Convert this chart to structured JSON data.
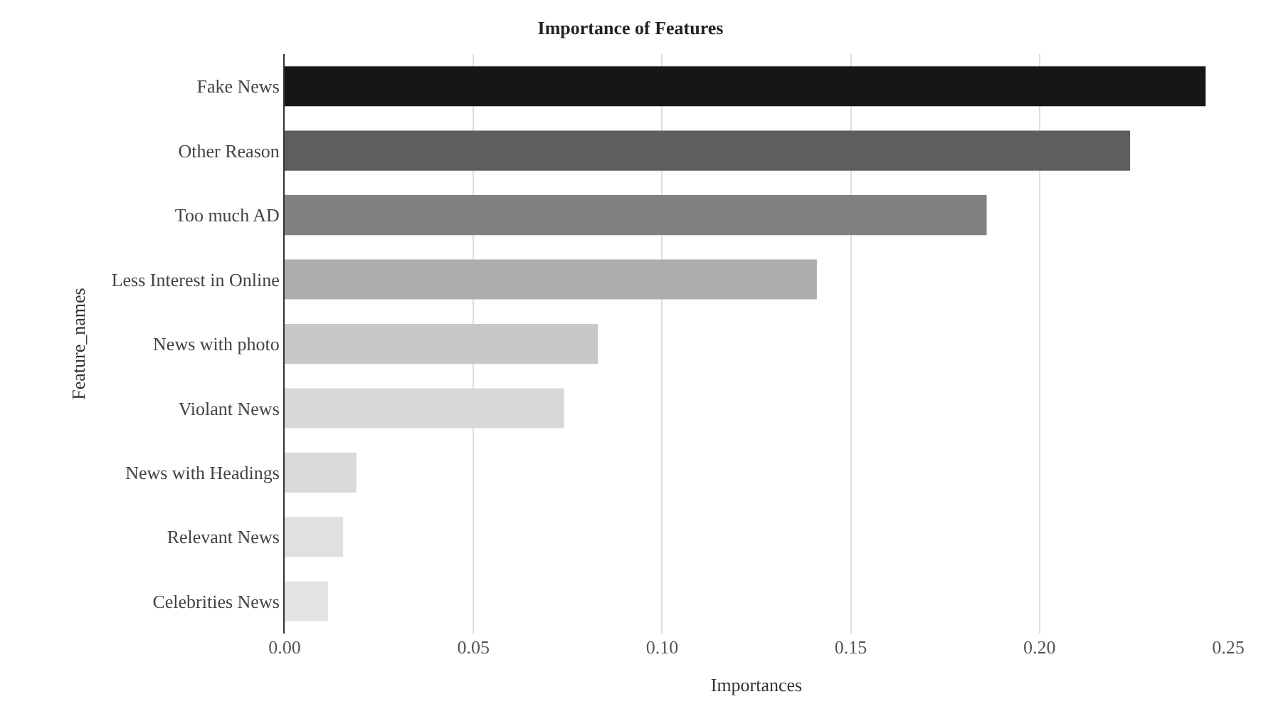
{
  "chart_data": {
    "type": "bar",
    "orientation": "horizontal",
    "title": "Importance of Features",
    "xlabel": "Importances",
    "ylabel": "Feature_names",
    "categories": [
      "Fake News",
      "Other Reason",
      "Too much AD",
      "Less Interest in Online",
      "News with photo",
      "Violant News",
      "News with Headings",
      "Relevant News",
      "Celebrities News"
    ],
    "values": [
      0.244,
      0.224,
      0.186,
      0.141,
      0.083,
      0.074,
      0.019,
      0.0155,
      0.0115
    ],
    "colors": [
      "#161616",
      "#5e5e5e",
      "#808080",
      "#adadad",
      "#c8c8c8",
      "#d8d8d8",
      "#dadada",
      "#e0e0e0",
      "#e3e3e3"
    ],
    "xlim": [
      0,
      0.25
    ],
    "xticks": [
      {
        "value": 0,
        "label": "0.00"
      },
      0.05,
      {
        "value": 0.1,
        "label": "0.10"
      },
      0.15,
      {
        "value": 0.2,
        "label": "0.20"
      },
      0.25
    ],
    "grid": "x"
  }
}
